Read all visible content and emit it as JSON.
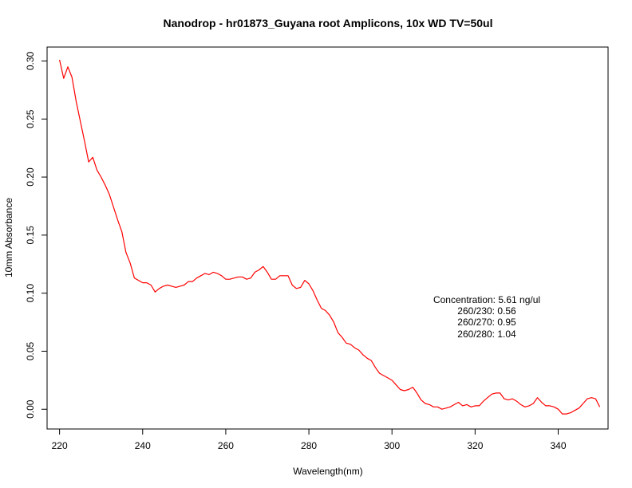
{
  "chart_data": {
    "type": "line",
    "title": "Nanodrop - hr01873_Guyana root Amplicons, 10x WD TV=50ul",
    "xlabel": "Wavelength(nm)",
    "ylabel": "10mm Absorbance",
    "xlim": [
      217,
      352
    ],
    "ylim": [
      -0.017,
      0.312
    ],
    "xticks": [
      220,
      240,
      260,
      280,
      300,
      320,
      340
    ],
    "yticks": [
      0.0,
      0.05,
      0.1,
      0.15,
      0.2,
      0.25,
      0.3
    ],
    "ytick_labels": [
      "0.00",
      "0.05",
      "0.10",
      "0.15",
      "0.20",
      "0.25",
      "0.30"
    ],
    "grid": false,
    "legend": "none",
    "series": [
      {
        "color": "#ff0000",
        "x": [
          220,
          221,
          222,
          223,
          224,
          225,
          226,
          227,
          228,
          229,
          230,
          231,
          232,
          233,
          234,
          235,
          236,
          237,
          238,
          239,
          240,
          241,
          242,
          243,
          244,
          245,
          246,
          247,
          248,
          249,
          250,
          251,
          252,
          253,
          254,
          255,
          256,
          257,
          258,
          259,
          260,
          261,
          262,
          263,
          264,
          265,
          266,
          267,
          268,
          269,
          270,
          271,
          272,
          273,
          274,
          275,
          276,
          277,
          278,
          279,
          280,
          281,
          282,
          283,
          284,
          285,
          286,
          287,
          288,
          289,
          290,
          291,
          292,
          293,
          294,
          295,
          296,
          297,
          298,
          299,
          300,
          301,
          302,
          303,
          304,
          305,
          306,
          307,
          308,
          309,
          310,
          311,
          312,
          313,
          314,
          315,
          316,
          317,
          318,
          319,
          320,
          321,
          322,
          323,
          324,
          325,
          326,
          327,
          328,
          329,
          330,
          331,
          332,
          333,
          334,
          335,
          336,
          337,
          338,
          339,
          340,
          341,
          342,
          343,
          344,
          345,
          346,
          347,
          348,
          349,
          350
        ],
        "y": [
          0.301,
          0.285,
          0.295,
          0.286,
          0.265,
          0.248,
          0.231,
          0.213,
          0.217,
          0.206,
          0.2,
          0.193,
          0.185,
          0.174,
          0.163,
          0.153,
          0.135,
          0.126,
          0.113,
          0.111,
          0.109,
          0.109,
          0.107,
          0.101,
          0.104,
          0.106,
          0.107,
          0.106,
          0.105,
          0.106,
          0.107,
          0.11,
          0.11,
          0.113,
          0.115,
          0.117,
          0.116,
          0.118,
          0.117,
          0.115,
          0.112,
          0.112,
          0.113,
          0.114,
          0.114,
          0.112,
          0.113,
          0.118,
          0.12,
          0.123,
          0.118,
          0.112,
          0.112,
          0.115,
          0.115,
          0.115,
          0.107,
          0.104,
          0.105,
          0.111,
          0.108,
          0.102,
          0.094,
          0.087,
          0.085,
          0.081,
          0.075,
          0.066,
          0.062,
          0.057,
          0.056,
          0.053,
          0.051,
          0.047,
          0.044,
          0.042,
          0.036,
          0.031,
          0.029,
          0.027,
          0.025,
          0.021,
          0.017,
          0.016,
          0.017,
          0.019,
          0.014,
          0.008,
          0.005,
          0.004,
          0.002,
          0.002,
          0.0,
          0.001,
          0.002,
          0.004,
          0.006,
          0.003,
          0.004,
          0.002,
          0.003,
          0.003,
          0.007,
          0.01,
          0.013,
          0.014,
          0.014,
          0.009,
          0.008,
          0.009,
          0.007,
          0.004,
          0.002,
          0.003,
          0.005,
          0.01,
          0.006,
          0.003,
          0.003,
          0.002,
          0.0,
          -0.004,
          -0.004,
          -0.003,
          -0.001,
          0.001,
          0.005,
          0.009,
          0.01,
          0.009,
          0.002
        ]
      }
    ],
    "annotations": [
      "Concentration: 5.61 ng/ul",
      "260/230: 0.56",
      "260/270: 0.95",
      "260/280: 1.04"
    ]
  }
}
